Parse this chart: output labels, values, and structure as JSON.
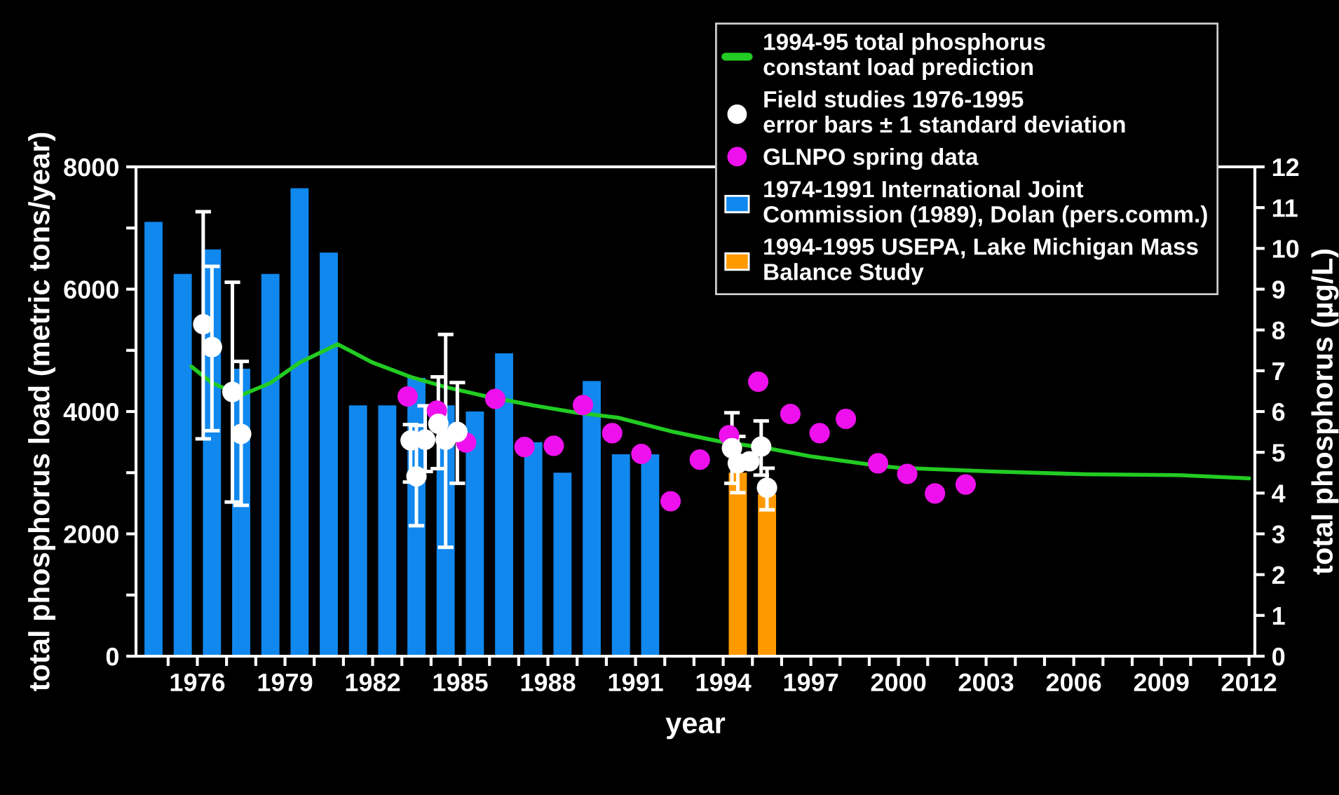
{
  "chart_data": {
    "type": "bar",
    "xlabel": "year",
    "ylabel": "total phosphorus load (metric tons/year)",
    "y2label": "total phosphorus (µg/L)",
    "xlim": [
      1973.9,
      2012.2
    ],
    "ylim": [
      0,
      8000
    ],
    "y2lim": [
      0,
      12
    ],
    "xticks": [
      {
        "value": 1975,
        "label": null
      },
      1976,
      {
        "value": 1977,
        "label": null
      },
      {
        "value": 1978,
        "label": null
      },
      1979,
      {
        "value": 1980,
        "label": null
      },
      {
        "value": 1981,
        "label": null
      },
      1982,
      {
        "value": 1983,
        "label": null
      },
      {
        "value": 1984,
        "label": null
      },
      1985,
      {
        "value": 1986,
        "label": null
      },
      {
        "value": 1987,
        "label": null
      },
      1988,
      {
        "value": 1989,
        "label": null
      },
      {
        "value": 1990,
        "label": null
      },
      1991,
      {
        "value": 1992,
        "label": null
      },
      {
        "value": 1993,
        "label": null
      },
      1994,
      {
        "value": 1995,
        "label": null
      },
      {
        "value": 1996,
        "label": null
      },
      1997,
      {
        "value": 1998,
        "label": null
      },
      {
        "value": 1999,
        "label": null
      },
      2000,
      {
        "value": 2001,
        "label": null
      },
      {
        "value": 2002,
        "label": null
      },
      2003,
      {
        "value": 2004,
        "label": null
      },
      {
        "value": 2005,
        "label": null
      },
      2006,
      {
        "value": 2007,
        "label": null
      },
      {
        "value": 2008,
        "label": null
      },
      2009,
      {
        "value": 2010,
        "label": null
      },
      {
        "value": 2011,
        "label": null
      },
      2012
    ],
    "yticks": [
      0,
      {
        "value": 1000,
        "label": null
      },
      2000,
      {
        "value": 3000,
        "label": null
      },
      4000,
      {
        "value": 5000,
        "label": null
      },
      6000,
      {
        "value": 7000,
        "label": null
      },
      8000
    ],
    "y2ticks": [
      0,
      1,
      2,
      3,
      4,
      5,
      6,
      7,
      8,
      9,
      10,
      11,
      12
    ],
    "grid": false,
    "legend": "top right",
    "series": [
      {
        "type": "line",
        "axis": "y2",
        "name": "1994-95 total phosphorus\nconstant load prediction",
        "color": "#22cc22",
        "marker": "none",
        "line_style": "solid",
        "x": [
          1975.8,
          1976.5,
          1977.5,
          1978.5,
          1979.5,
          1980.8,
          1982,
          1983.3,
          1984.5,
          1985.9,
          1987.5,
          1989,
          1990.4,
          1992.3,
          1994,
          1995.5,
          1997,
          1999,
          2000,
          2003.2,
          2006.4,
          2009.6,
          2012
        ],
        "values": [
          7.1,
          6.7,
          6.4,
          6.7,
          7.2,
          7.65,
          7.2,
          6.85,
          6.6,
          6.37,
          6.15,
          5.97,
          5.85,
          5.5,
          5.25,
          5.1,
          4.9,
          4.7,
          4.62,
          4.53,
          4.46,
          4.44,
          4.36
        ]
      },
      {
        "name": "1974-1991 International Joint\nCommission (1989), Dolan (pers.comm.)",
        "color": "#1188ee",
        "x": [
          1974.5,
          1975.5,
          1976.5,
          1977.5,
          1978.5,
          1979.5,
          1980.5,
          1981.5,
          1982.5,
          1983.5,
          1984.5,
          1985.5,
          1986.5,
          1987.5,
          1988.5,
          1989.5,
          1990.5,
          1991.5
        ],
        "values": [
          7100,
          6250,
          6650,
          4700,
          6250,
          7650,
          6600,
          4100,
          4100,
          4550,
          4100,
          4000,
          4950,
          3500,
          3000,
          4500,
          3300,
          3300
        ]
      },
      {
        "name": "1994-1995 USEPA, Lake Michigan Mass\nBalance Study",
        "color": "#ff9900",
        "x": [
          1994.5,
          1995.5
        ],
        "values": [
          3000,
          2650
        ]
      },
      {
        "type": "scatter",
        "axis": "y2",
        "name": "GLNPO spring data",
        "color": "#ee11ee",
        "marker": "circle",
        "x": [
          1983.2,
          1984.2,
          1985.2,
          1986.2,
          1987.2,
          1988.2,
          1989.2,
          1990.2,
          1991.2,
          1992.2,
          1993.2,
          1994.2,
          1995.2,
          1996.3,
          1997.3,
          1998.2,
          1999.3,
          2000.3,
          2001.25,
          2002.3
        ],
        "values": [
          6.37,
          6.02,
          5.24,
          6.31,
          5.13,
          5.16,
          6.16,
          5.47,
          4.96,
          3.8,
          4.82,
          5.42,
          6.73,
          5.94,
          5.47,
          5.82,
          4.73,
          4.47,
          3.99,
          4.21
        ]
      },
      {
        "type": "scatter",
        "axis": "y2",
        "name": "Field studies 1976-1995\nerror bars ± 1 standard deviation",
        "color": "#ffffff",
        "marker": "circle",
        "x": [
          1976.2,
          1976.5,
          1977.2,
          1977.5,
          1983.3,
          1983.5,
          1983.8,
          1984.25,
          1984.5,
          1984.9,
          1994.3,
          1994.5,
          1994.9,
          1995.3,
          1995.5
        ],
        "values": [
          8.14,
          7.58,
          6.48,
          5.45,
          5.29,
          4.41,
          5.31,
          5.7,
          5.31,
          5.5,
          5.1,
          4.73,
          4.78,
          5.14,
          4.13
        ],
        "errors": [
          [
            5.33,
            10.9
          ],
          [
            5.53,
            9.56
          ],
          [
            3.78,
            9.17
          ],
          [
            3.7,
            7.23
          ],
          [
            4.27,
            5.68
          ],
          [
            3.2,
            5.66
          ],
          [
            4.53,
            6.14
          ],
          [
            4.6,
            6.85
          ],
          [
            2.67,
            7.89
          ],
          [
            4.24,
            6.71
          ],
          [
            4.24,
            5.97
          ],
          [
            4.01,
            5.39
          ],
          null,
          [
            4.44,
            5.77
          ],
          [
            3.59,
            4.61
          ]
        ]
      }
    ]
  }
}
